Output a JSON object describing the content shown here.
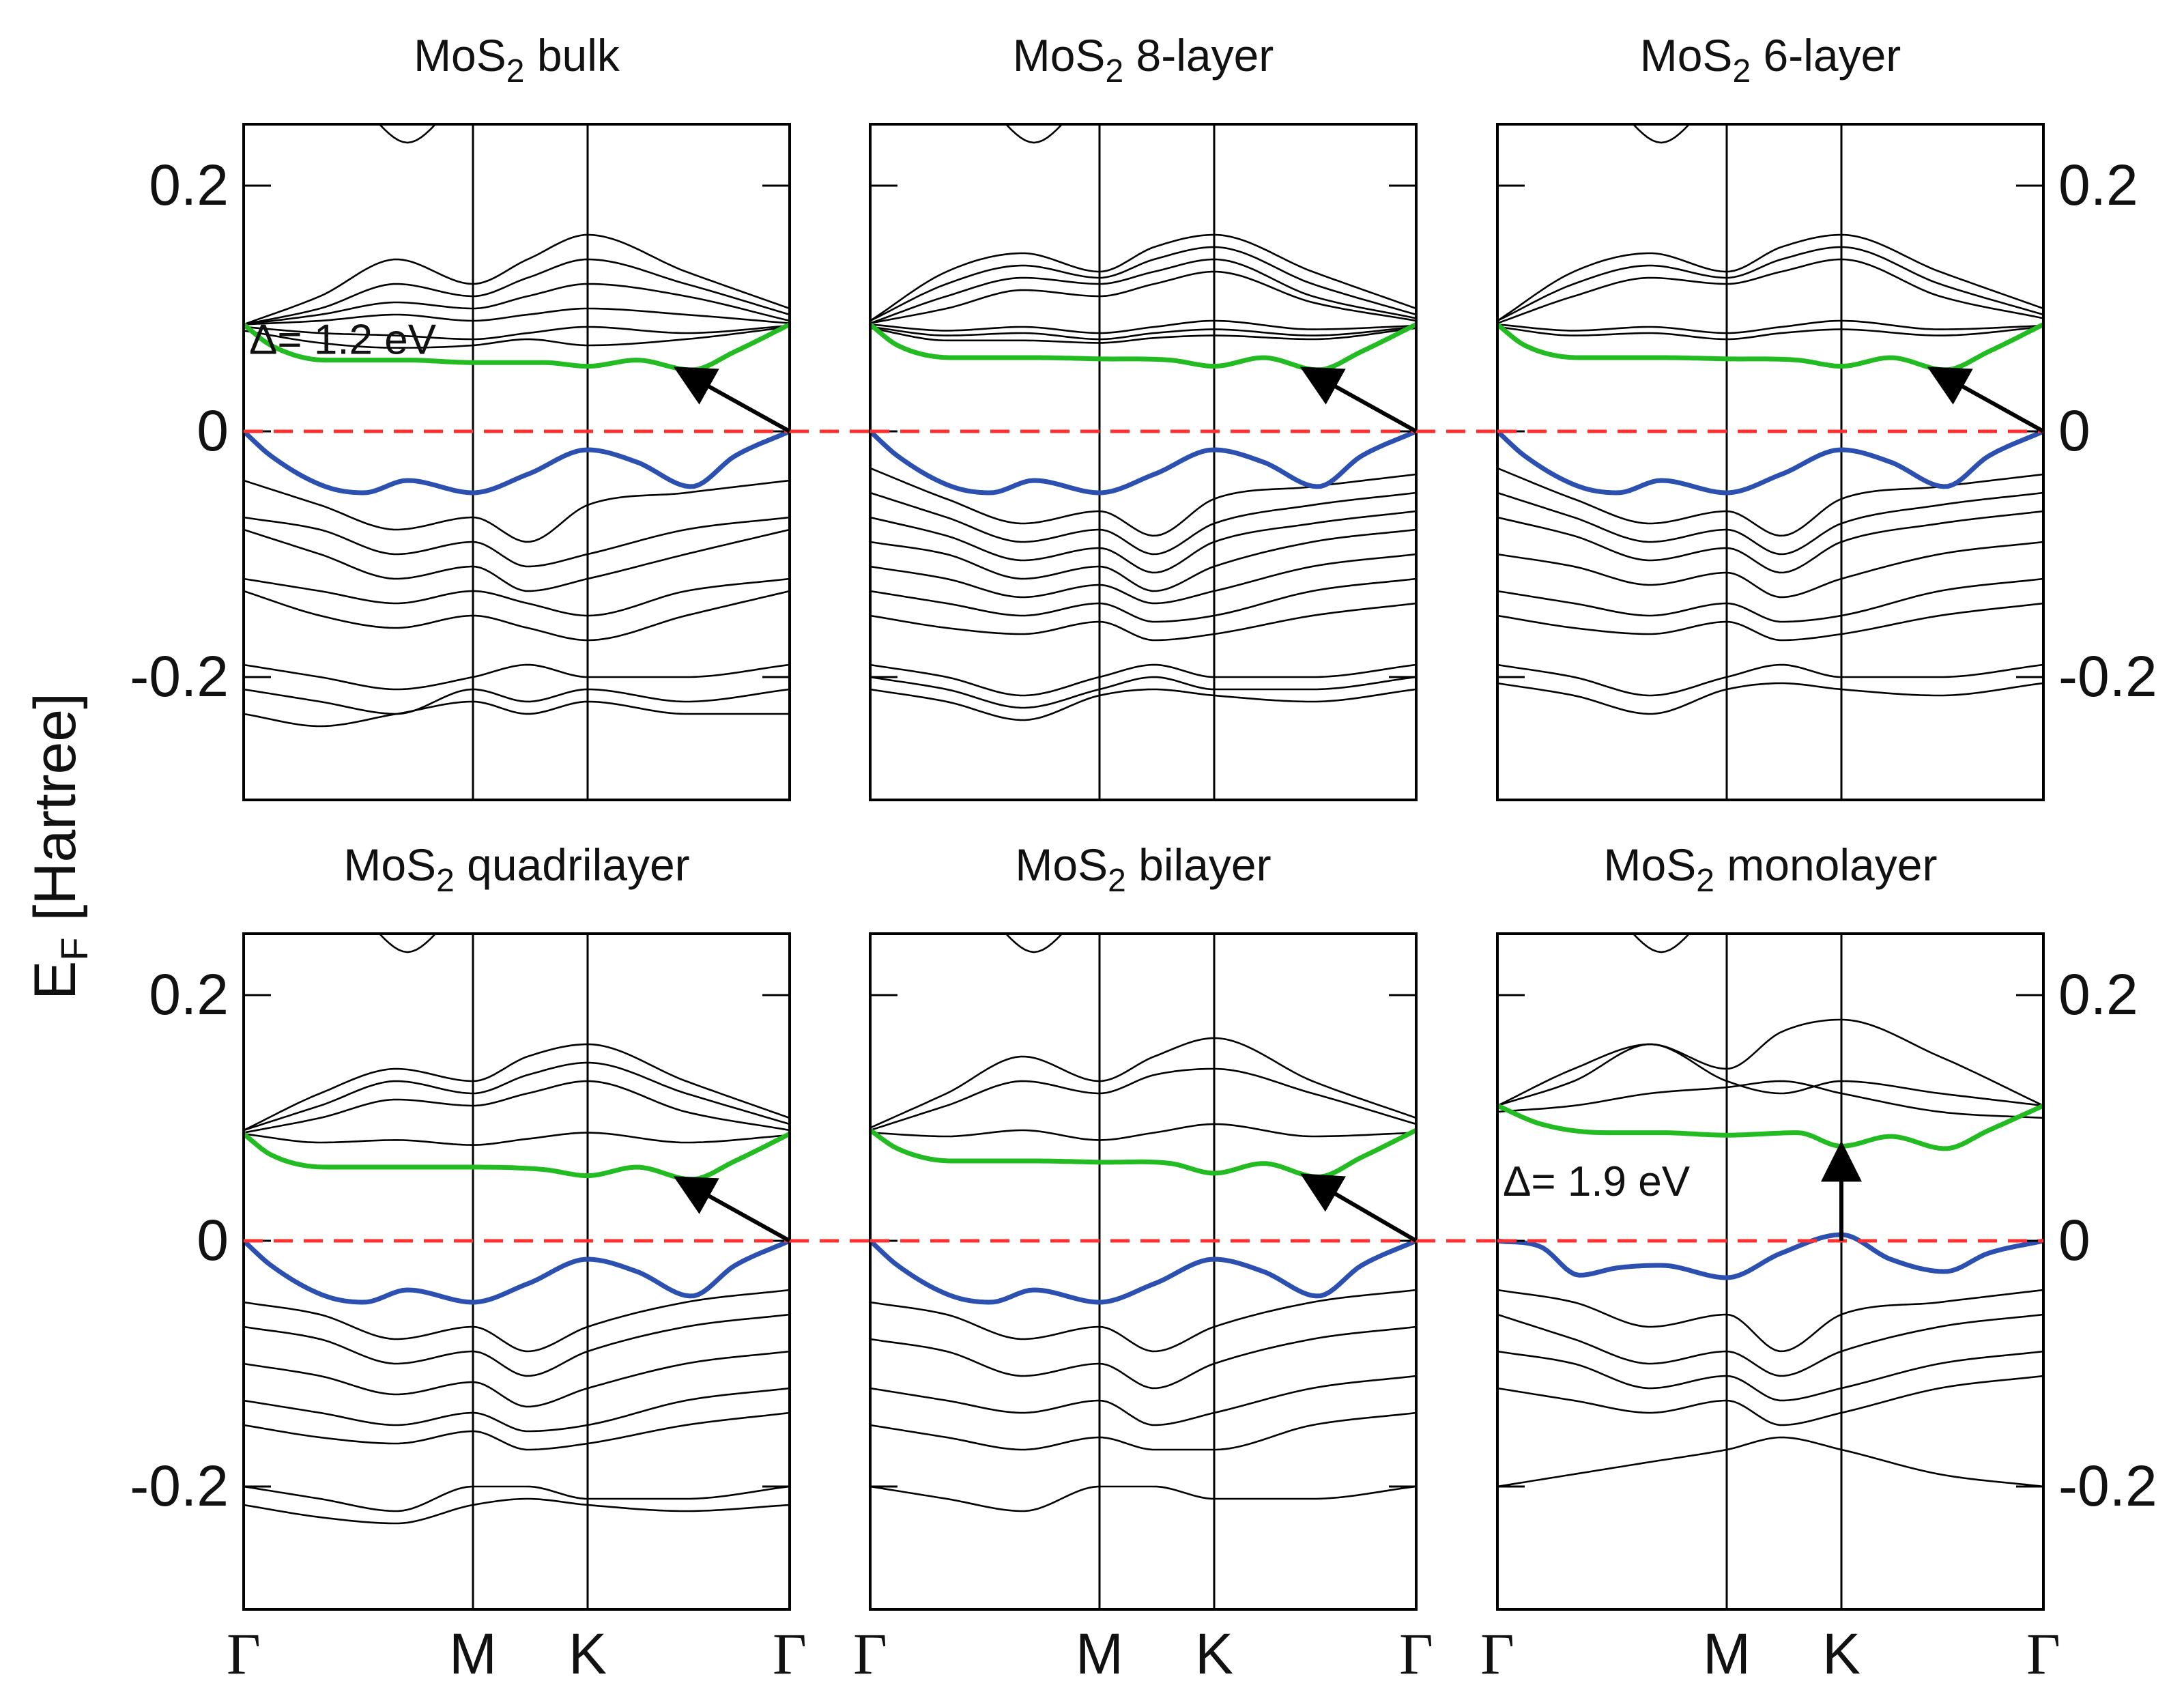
{
  "chart_data": {
    "type": "line",
    "ylabel": "E",
    "ylabel_sub": "F",
    "ylabel_unit": "[Hartree]",
    "ylim": [
      -0.3,
      0.25
    ],
    "yticks": [
      {
        "v": 0.2,
        "label": "0.2"
      },
      {
        "v": 0.0,
        "label": "0"
      },
      {
        "v": -0.2,
        "label": "-0.2"
      }
    ],
    "kpoints": [
      {
        "x": 0.0,
        "label": "Γ"
      },
      {
        "x": 0.42,
        "label": "M"
      },
      {
        "x": 0.63,
        "label": "K"
      },
      {
        "x": 1.0,
        "label": "Γ"
      }
    ],
    "colors": {
      "cb": "#22bb22",
      "vb": "#2b50b0",
      "fermi": "#ff3030",
      "bands": "#000000"
    },
    "panels": [
      {
        "id": "bulk",
        "prefix": "MoS",
        "sub": "2",
        "suffix": " bulk",
        "row": 0,
        "col": 0,
        "gap_label": "Δ= 1.2 eV",
        "arrow": "diagonal",
        "cb_x": [
          0,
          0.05,
          0.15,
          0.3,
          0.42,
          0.55,
          0.63,
          0.72,
          0.82,
          0.9,
          1.0
        ],
        "cb_y": [
          0.087,
          0.07,
          0.058,
          0.058,
          0.056,
          0.056,
          0.053,
          0.058,
          0.05,
          0.065,
          0.087
        ],
        "vb_x": [
          0,
          0.05,
          0.15,
          0.22,
          0.3,
          0.42,
          0.52,
          0.63,
          0.72,
          0.82,
          0.9,
          1.0
        ],
        "vb_y": [
          0,
          -0.02,
          -0.045,
          -0.05,
          -0.04,
          -0.05,
          -0.035,
          -0.015,
          -0.025,
          -0.045,
          -0.02,
          0
        ],
        "upper": [
          [
            0.087,
            0.11,
            0.14,
            0.12,
            0.14,
            0.16,
            0.13,
            0.1
          ],
          [
            0.087,
            0.1,
            0.12,
            0.11,
            0.125,
            0.14,
            0.12,
            0.095
          ],
          [
            0.087,
            0.095,
            0.105,
            0.1,
            0.11,
            0.12,
            0.11,
            0.09
          ],
          [
            0.087,
            0.09,
            0.095,
            0.09,
            0.095,
            0.1,
            0.095,
            0.088
          ],
          [
            0.085,
            0.08,
            0.078,
            0.075,
            0.08,
            0.085,
            0.08,
            0.086
          ],
          [
            0.082,
            0.072,
            0.068,
            0.07,
            0.075,
            0.07,
            0.075,
            0.085
          ]
        ],
        "lower": [
          [
            -0.04,
            -0.06,
            -0.08,
            -0.07,
            -0.09,
            -0.06,
            -0.05,
            -0.04
          ],
          [
            -0.07,
            -0.08,
            -0.1,
            -0.09,
            -0.11,
            -0.1,
            -0.08,
            -0.07
          ],
          [
            -0.08,
            -0.1,
            -0.12,
            -0.11,
            -0.13,
            -0.12,
            -0.1,
            -0.08
          ],
          [
            -0.12,
            -0.13,
            -0.14,
            -0.13,
            -0.14,
            -0.15,
            -0.13,
            -0.12
          ],
          [
            -0.13,
            -0.15,
            -0.16,
            -0.15,
            -0.16,
            -0.17,
            -0.15,
            -0.13
          ],
          [
            -0.19,
            -0.2,
            -0.21,
            -0.2,
            -0.19,
            -0.2,
            -0.2,
            -0.19
          ],
          [
            -0.21,
            -0.22,
            -0.23,
            -0.21,
            -0.22,
            -0.21,
            -0.22,
            -0.21
          ],
          [
            -0.23,
            -0.24,
            -0.23,
            -0.22,
            -0.23,
            -0.22,
            -0.23,
            -0.23
          ]
        ]
      },
      {
        "id": "8layer",
        "prefix": "MoS",
        "sub": "2",
        "suffix": " 8-layer",
        "row": 0,
        "col": 1,
        "gap_label": "",
        "arrow": "diagonal",
        "cb_x": [
          0,
          0.05,
          0.15,
          0.3,
          0.42,
          0.55,
          0.63,
          0.72,
          0.82,
          0.9,
          1.0
        ],
        "cb_y": [
          0.087,
          0.07,
          0.06,
          0.06,
          0.059,
          0.058,
          0.053,
          0.06,
          0.05,
          0.065,
          0.087
        ],
        "vb_x": [
          0,
          0.05,
          0.15,
          0.22,
          0.3,
          0.42,
          0.52,
          0.63,
          0.72,
          0.82,
          0.9,
          1.0
        ],
        "vb_y": [
          0,
          -0.02,
          -0.045,
          -0.05,
          -0.04,
          -0.05,
          -0.035,
          -0.015,
          -0.025,
          -0.045,
          -0.02,
          0
        ],
        "upper": [
          [
            0.09,
            0.13,
            0.145,
            0.13,
            0.15,
            0.16,
            0.13,
            0.1
          ],
          [
            0.09,
            0.12,
            0.135,
            0.125,
            0.14,
            0.15,
            0.12,
            0.095
          ],
          [
            0.088,
            0.11,
            0.125,
            0.12,
            0.13,
            0.14,
            0.11,
            0.092
          ],
          [
            0.088,
            0.1,
            0.115,
            0.11,
            0.12,
            0.13,
            0.105,
            0.09
          ],
          [
            0.087,
            0.082,
            0.085,
            0.08,
            0.085,
            0.09,
            0.083,
            0.086
          ],
          [
            0.085,
            0.078,
            0.08,
            0.075,
            0.08,
            0.083,
            0.078,
            0.085
          ],
          [
            0.084,
            0.074,
            0.074,
            0.072,
            0.076,
            0.078,
            0.075,
            0.084
          ]
        ],
        "lower": [
          [
            -0.03,
            -0.055,
            -0.075,
            -0.065,
            -0.085,
            -0.055,
            -0.045,
            -0.035
          ],
          [
            -0.05,
            -0.07,
            -0.09,
            -0.08,
            -0.1,
            -0.075,
            -0.06,
            -0.05
          ],
          [
            -0.07,
            -0.085,
            -0.105,
            -0.095,
            -0.115,
            -0.09,
            -0.075,
            -0.065
          ],
          [
            -0.09,
            -0.1,
            -0.12,
            -0.11,
            -0.13,
            -0.11,
            -0.09,
            -0.08
          ],
          [
            -0.11,
            -0.12,
            -0.135,
            -0.125,
            -0.14,
            -0.13,
            -0.11,
            -0.1
          ],
          [
            -0.13,
            -0.14,
            -0.15,
            -0.14,
            -0.155,
            -0.15,
            -0.13,
            -0.12
          ],
          [
            -0.15,
            -0.16,
            -0.165,
            -0.155,
            -0.17,
            -0.165,
            -0.15,
            -0.14
          ],
          [
            -0.19,
            -0.2,
            -0.215,
            -0.2,
            -0.19,
            -0.2,
            -0.2,
            -0.19
          ],
          [
            -0.2,
            -0.21,
            -0.225,
            -0.21,
            -0.2,
            -0.21,
            -0.21,
            -0.2
          ],
          [
            -0.21,
            -0.22,
            -0.235,
            -0.215,
            -0.21,
            -0.215,
            -0.22,
            -0.21
          ]
        ]
      },
      {
        "id": "6layer",
        "prefix": "MoS",
        "sub": "2",
        "suffix": " 6-layer",
        "row": 0,
        "col": 2,
        "gap_label": "",
        "arrow": "diagonal",
        "cb_x": [
          0,
          0.05,
          0.15,
          0.3,
          0.42,
          0.55,
          0.63,
          0.72,
          0.82,
          0.9,
          1.0
        ],
        "cb_y": [
          0.087,
          0.07,
          0.06,
          0.06,
          0.059,
          0.058,
          0.053,
          0.06,
          0.05,
          0.065,
          0.087
        ],
        "vb_x": [
          0,
          0.05,
          0.15,
          0.22,
          0.3,
          0.42,
          0.52,
          0.63,
          0.72,
          0.82,
          0.9,
          1.0
        ],
        "vb_y": [
          0,
          -0.02,
          -0.045,
          -0.05,
          -0.04,
          -0.05,
          -0.035,
          -0.015,
          -0.025,
          -0.045,
          -0.02,
          0
        ],
        "upper": [
          [
            0.09,
            0.13,
            0.145,
            0.13,
            0.15,
            0.16,
            0.13,
            0.1
          ],
          [
            0.09,
            0.12,
            0.135,
            0.125,
            0.14,
            0.15,
            0.12,
            0.095
          ],
          [
            0.088,
            0.11,
            0.125,
            0.12,
            0.13,
            0.14,
            0.11,
            0.092
          ],
          [
            0.087,
            0.082,
            0.085,
            0.08,
            0.085,
            0.09,
            0.083,
            0.086
          ],
          [
            0.085,
            0.078,
            0.08,
            0.075,
            0.08,
            0.083,
            0.078,
            0.085
          ]
        ],
        "lower": [
          [
            -0.03,
            -0.055,
            -0.075,
            -0.065,
            -0.085,
            -0.055,
            -0.045,
            -0.035
          ],
          [
            -0.05,
            -0.07,
            -0.09,
            -0.08,
            -0.1,
            -0.075,
            -0.06,
            -0.05
          ],
          [
            -0.07,
            -0.085,
            -0.105,
            -0.095,
            -0.115,
            -0.09,
            -0.075,
            -0.065
          ],
          [
            -0.1,
            -0.11,
            -0.125,
            -0.115,
            -0.135,
            -0.12,
            -0.1,
            -0.09
          ],
          [
            -0.13,
            -0.14,
            -0.15,
            -0.14,
            -0.155,
            -0.15,
            -0.13,
            -0.12
          ],
          [
            -0.15,
            -0.16,
            -0.165,
            -0.155,
            -0.17,
            -0.165,
            -0.15,
            -0.14
          ],
          [
            -0.19,
            -0.2,
            -0.215,
            -0.2,
            -0.19,
            -0.2,
            -0.2,
            -0.19
          ],
          [
            -0.205,
            -0.215,
            -0.23,
            -0.21,
            -0.205,
            -0.21,
            -0.215,
            -0.205
          ]
        ]
      },
      {
        "id": "quadrilayer",
        "prefix": "MoS",
        "sub": "2",
        "suffix": " quadrilayer",
        "row": 1,
        "col": 0,
        "gap_label": "",
        "arrow": "diagonal",
        "cb_x": [
          0,
          0.05,
          0.15,
          0.3,
          0.42,
          0.55,
          0.63,
          0.72,
          0.82,
          0.9,
          1.0
        ],
        "cb_y": [
          0.087,
          0.07,
          0.06,
          0.06,
          0.06,
          0.058,
          0.053,
          0.06,
          0.05,
          0.065,
          0.087
        ],
        "vb_x": [
          0,
          0.05,
          0.15,
          0.22,
          0.3,
          0.42,
          0.52,
          0.63,
          0.72,
          0.82,
          0.9,
          1.0
        ],
        "vb_y": [
          0,
          -0.02,
          -0.045,
          -0.05,
          -0.04,
          -0.05,
          -0.035,
          -0.015,
          -0.025,
          -0.045,
          -0.02,
          0
        ],
        "upper": [
          [
            0.09,
            0.12,
            0.14,
            0.13,
            0.15,
            0.16,
            0.13,
            0.1
          ],
          [
            0.09,
            0.11,
            0.13,
            0.12,
            0.135,
            0.145,
            0.12,
            0.095
          ],
          [
            0.088,
            0.1,
            0.115,
            0.11,
            0.12,
            0.13,
            0.105,
            0.09
          ],
          [
            0.087,
            0.08,
            0.082,
            0.078,
            0.083,
            0.088,
            0.08,
            0.086
          ]
        ],
        "lower": [
          [
            -0.05,
            -0.06,
            -0.08,
            -0.07,
            -0.09,
            -0.07,
            -0.05,
            -0.04
          ],
          [
            -0.07,
            -0.08,
            -0.1,
            -0.09,
            -0.11,
            -0.09,
            -0.07,
            -0.06
          ],
          [
            -0.1,
            -0.11,
            -0.125,
            -0.115,
            -0.135,
            -0.12,
            -0.1,
            -0.09
          ],
          [
            -0.13,
            -0.14,
            -0.15,
            -0.14,
            -0.155,
            -0.15,
            -0.13,
            -0.12
          ],
          [
            -0.15,
            -0.16,
            -0.165,
            -0.155,
            -0.17,
            -0.165,
            -0.15,
            -0.14
          ],
          [
            -0.2,
            -0.21,
            -0.22,
            -0.2,
            -0.2,
            -0.21,
            -0.21,
            -0.2
          ],
          [
            -0.215,
            -0.225,
            -0.23,
            -0.215,
            -0.21,
            -0.215,
            -0.22,
            -0.215
          ]
        ]
      },
      {
        "id": "bilayer",
        "prefix": "MoS",
        "sub": "2",
        "suffix": " bilayer",
        "row": 1,
        "col": 1,
        "gap_label": "",
        "arrow": "diagonal",
        "cb_x": [
          0,
          0.05,
          0.15,
          0.3,
          0.42,
          0.55,
          0.63,
          0.72,
          0.82,
          0.9,
          1.0
        ],
        "cb_y": [
          0.09,
          0.075,
          0.065,
          0.065,
          0.064,
          0.063,
          0.055,
          0.063,
          0.052,
          0.068,
          0.09
        ],
        "vb_x": [
          0,
          0.05,
          0.15,
          0.22,
          0.3,
          0.42,
          0.52,
          0.63,
          0.72,
          0.82,
          0.9,
          1.0
        ],
        "vb_y": [
          0,
          -0.02,
          -0.045,
          -0.05,
          -0.04,
          -0.05,
          -0.035,
          -0.015,
          -0.025,
          -0.045,
          -0.02,
          0
        ],
        "upper": [
          [
            0.092,
            0.12,
            0.15,
            0.13,
            0.15,
            0.165,
            0.13,
            0.1
          ],
          [
            0.09,
            0.11,
            0.13,
            0.12,
            0.135,
            0.14,
            0.12,
            0.095
          ],
          [
            0.088,
            0.085,
            0.09,
            0.082,
            0.088,
            0.095,
            0.085,
            0.088
          ]
        ],
        "lower": [
          [
            -0.05,
            -0.06,
            -0.08,
            -0.07,
            -0.09,
            -0.07,
            -0.05,
            -0.04
          ],
          [
            -0.08,
            -0.09,
            -0.11,
            -0.1,
            -0.12,
            -0.1,
            -0.08,
            -0.07
          ],
          [
            -0.12,
            -0.13,
            -0.14,
            -0.13,
            -0.15,
            -0.14,
            -0.12,
            -0.11
          ],
          [
            -0.15,
            -0.16,
            -0.17,
            -0.16,
            -0.17,
            -0.17,
            -0.15,
            -0.14
          ],
          [
            -0.2,
            -0.21,
            -0.22,
            -0.2,
            -0.2,
            -0.21,
            -0.21,
            -0.2
          ]
        ]
      },
      {
        "id": "monolayer",
        "prefix": "MoS",
        "sub": "2",
        "suffix": " monolayer",
        "row": 1,
        "col": 2,
        "gap_label": "Δ= 1.9 eV",
        "arrow": "vertical",
        "cb_x": [
          0,
          0.08,
          0.2,
          0.3,
          0.42,
          0.55,
          0.63,
          0.72,
          0.82,
          0.9,
          1.0
        ],
        "cb_y": [
          0.11,
          0.095,
          0.088,
          0.088,
          0.086,
          0.088,
          0.077,
          0.085,
          0.075,
          0.09,
          0.11
        ],
        "vb_x": [
          0,
          0.08,
          0.15,
          0.22,
          0.3,
          0.42,
          0.52,
          0.63,
          0.72,
          0.82,
          0.9,
          1.0
        ],
        "vb_y": [
          0,
          -0.005,
          -0.028,
          -0.022,
          -0.02,
          -0.03,
          -0.01,
          0.005,
          -0.015,
          -0.025,
          -0.01,
          0
        ],
        "upper": [
          [
            0.11,
            0.14,
            0.16,
            0.14,
            0.17,
            0.18,
            0.15,
            0.11
          ],
          [
            0.11,
            0.13,
            0.16,
            0.13,
            0.12,
            0.13,
            0.12,
            0.11
          ],
          [
            0.105,
            0.11,
            0.12,
            0.125,
            0.13,
            0.12,
            0.105,
            0.1
          ]
        ],
        "lower": [
          [
            -0.04,
            -0.05,
            -0.07,
            -0.06,
            -0.09,
            -0.06,
            -0.05,
            -0.04
          ],
          [
            -0.06,
            -0.08,
            -0.1,
            -0.09,
            -0.11,
            -0.09,
            -0.07,
            -0.06
          ],
          [
            -0.09,
            -0.1,
            -0.12,
            -0.11,
            -0.13,
            -0.12,
            -0.1,
            -0.09
          ],
          [
            -0.12,
            -0.13,
            -0.14,
            -0.13,
            -0.15,
            -0.14,
            -0.12,
            -0.11
          ],
          [
            -0.2,
            -0.19,
            -0.18,
            -0.17,
            -0.16,
            -0.17,
            -0.19,
            -0.2
          ]
        ]
      }
    ]
  }
}
